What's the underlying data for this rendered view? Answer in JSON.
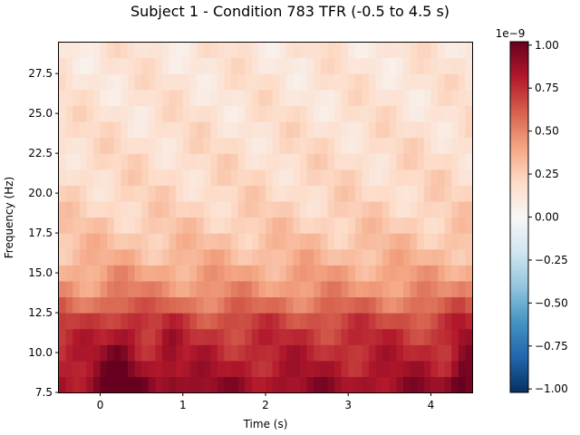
{
  "chart_data": {
    "type": "heatmap",
    "title": "Subject 1 - Condition 783 TFR (-0.5 to 4.5 s)",
    "xlabel": "Time (s)",
    "ylabel": "Frequency (Hz)",
    "xlim": [
      -0.5,
      4.5
    ],
    "ylim": [
      7.5,
      29.5
    ],
    "x_ticks": [
      0,
      1,
      2,
      3,
      4
    ],
    "x_tick_labels": [
      "0",
      "1",
      "2",
      "3",
      "4"
    ],
    "y_ticks": [
      7.5,
      10.0,
      12.5,
      15.0,
      17.5,
      20.0,
      22.5,
      25.0,
      27.5
    ],
    "y_tick_labels": [
      "7.5",
      "10.0",
      "12.5",
      "15.0",
      "17.5",
      "20.0",
      "22.5",
      "25.0",
      "27.5"
    ],
    "colorbar": {
      "colormap": "RdBu_r",
      "vmin": -1.02e-09,
      "vmax": 1.02e-09,
      "offset_label": "1e−9",
      "ticks": [
        -1.0,
        -0.75,
        -0.5,
        -0.25,
        0.0,
        0.25,
        0.5,
        0.75,
        1.0
      ],
      "tick_labels": [
        "−1.00",
        "−0.75",
        "−0.50",
        "−0.25",
        "0.00",
        "0.25",
        "0.50",
        "0.75",
        "1.00"
      ]
    },
    "frequencies_hz": [
      8,
      9,
      10,
      11,
      12,
      13,
      14,
      15,
      16,
      17,
      18,
      19,
      20,
      21,
      22,
      23,
      24,
      25,
      26,
      27,
      28,
      29
    ],
    "band_mean_power_e9": [
      0.88,
      0.82,
      0.78,
      0.74,
      0.68,
      0.56,
      0.46,
      0.4,
      0.34,
      0.3,
      0.26,
      0.23,
      0.21,
      0.2,
      0.19,
      0.18,
      0.17,
      0.16,
      0.15,
      0.15,
      0.14,
      0.14
    ],
    "notes": "Power is strongest (dark red, ~0.9–1.0e-9) at 7.5–12 Hz, peaking near t≈0.25 s and t≈4.4 s; it fades smoothly to ~0.15e-9 above 20 Hz."
  }
}
